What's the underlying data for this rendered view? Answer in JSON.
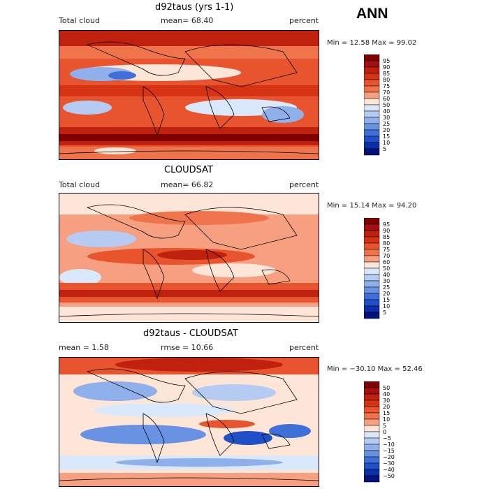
{
  "header": {
    "season": "ANN"
  },
  "panels": [
    {
      "title": "d92taus (yrs 1-1)",
      "left_label": "Total cloud",
      "center_label": "mean=  68.40",
      "right_label": "percent",
      "minmax": "Min =  12.58 Max =  99.02",
      "colorbar": [
        "95",
        "90",
        "85",
        "80",
        "75",
        "70",
        "60",
        "50",
        "40",
        "30",
        "25",
        "20",
        "15",
        "10",
        "5"
      ],
      "colors": [
        "#7f0000",
        "#a50f0f",
        "#c0200e",
        "#d63214",
        "#e8542e",
        "#f0744b",
        "#f7a081",
        "#fde5d8",
        "#d9e8fb",
        "#b5cbf2",
        "#8fb0ea",
        "#6a92e2",
        "#3f6fd8",
        "#1f50c8",
        "#0a2fa8",
        "#03137a"
      ]
    },
    {
      "title": "CLOUDSAT",
      "left_label": "Total cloud",
      "center_label": "mean=  66.82",
      "right_label": "percent",
      "minmax": "Min =  15.14 Max =  94.20",
      "colorbar": [
        "95",
        "90",
        "85",
        "80",
        "75",
        "70",
        "60",
        "50",
        "40",
        "30",
        "25",
        "20",
        "15",
        "10",
        "5"
      ],
      "colors": [
        "#7f0000",
        "#a50f0f",
        "#c0200e",
        "#d63214",
        "#e8542e",
        "#f0744b",
        "#f7a081",
        "#fde5d8",
        "#d9e8fb",
        "#b5cbf2",
        "#8fb0ea",
        "#6a92e2",
        "#3f6fd8",
        "#1f50c8",
        "#0a2fa8",
        "#03137a"
      ]
    },
    {
      "title": "d92taus - CLOUDSAT",
      "left_label": "mean =    1.58",
      "center_label": "rmse =  10.66",
      "right_label": "percent",
      "minmax": "Min = −30.10 Max =  52.46",
      "colorbar": [
        "50",
        "40",
        "30",
        "20",
        "15",
        "10",
        "5",
        "0",
        "−5",
        "−10",
        "−15",
        "−20",
        "−30",
        "−40",
        "−50"
      ],
      "colors": [
        "#7f0000",
        "#a50f0f",
        "#c0200e",
        "#d63214",
        "#e8542e",
        "#f0744b",
        "#f7a081",
        "#fde5d8",
        "#d9e8fb",
        "#b5cbf2",
        "#8fb0ea",
        "#6a92e2",
        "#3f6fd8",
        "#1f50c8",
        "#0a2fa8",
        "#03137a"
      ]
    }
  ]
}
